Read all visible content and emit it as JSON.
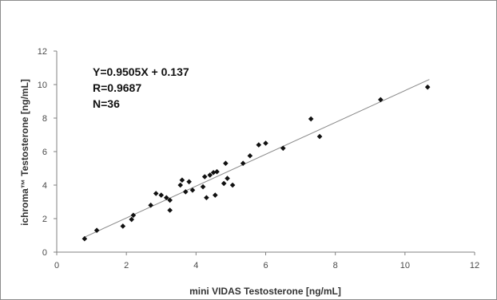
{
  "chart_data": {
    "type": "scatter",
    "xlabel": "mini VIDAS Testosterone [ng/mL]",
    "ylabel": "ichroma™ Testosterone [ng/mL]",
    "xlim": [
      0,
      12
    ],
    "ylim": [
      0,
      12
    ],
    "x_ticks": [
      0,
      2,
      4,
      6,
      8,
      10,
      12
    ],
    "y_ticks": [
      0,
      2,
      4,
      6,
      8,
      10,
      12
    ],
    "grid": false,
    "legend": "none",
    "annotations": [
      "Y=0.9505X + 0.137",
      "R=0.9687",
      "N=36"
    ],
    "trendline": {
      "slope": 0.9505,
      "intercept": 0.137,
      "x_range": [
        0.8,
        10.7
      ]
    },
    "points": [
      {
        "x": 0.8,
        "y": 0.8
      },
      {
        "x": 1.15,
        "y": 1.3
      },
      {
        "x": 1.9,
        "y": 1.55
      },
      {
        "x": 2.15,
        "y": 1.95
      },
      {
        "x": 2.2,
        "y": 2.2
      },
      {
        "x": 2.7,
        "y": 2.8
      },
      {
        "x": 2.85,
        "y": 3.5
      },
      {
        "x": 3.0,
        "y": 3.4
      },
      {
        "x": 3.15,
        "y": 3.25
      },
      {
        "x": 3.25,
        "y": 3.1
      },
      {
        "x": 3.25,
        "y": 2.5
      },
      {
        "x": 3.55,
        "y": 4.0
      },
      {
        "x": 3.6,
        "y": 4.3
      },
      {
        "x": 3.7,
        "y": 3.6
      },
      {
        "x": 3.8,
        "y": 4.2
      },
      {
        "x": 3.9,
        "y": 3.7
      },
      {
        "x": 4.2,
        "y": 3.9
      },
      {
        "x": 4.25,
        "y": 4.5
      },
      {
        "x": 4.3,
        "y": 3.25
      },
      {
        "x": 4.4,
        "y": 4.6
      },
      {
        "x": 4.5,
        "y": 4.75
      },
      {
        "x": 4.55,
        "y": 3.4
      },
      {
        "x": 4.6,
        "y": 4.8
      },
      {
        "x": 4.8,
        "y": 4.1
      },
      {
        "x": 4.85,
        "y": 5.3
      },
      {
        "x": 4.9,
        "y": 4.4
      },
      {
        "x": 5.05,
        "y": 4.0
      },
      {
        "x": 5.35,
        "y": 5.3
      },
      {
        "x": 5.55,
        "y": 5.75
      },
      {
        "x": 5.8,
        "y": 6.4
      },
      {
        "x": 6.0,
        "y": 6.5
      },
      {
        "x": 6.5,
        "y": 6.2
      },
      {
        "x": 7.3,
        "y": 7.95
      },
      {
        "x": 7.55,
        "y": 6.9
      },
      {
        "x": 9.3,
        "y": 9.1
      },
      {
        "x": 10.65,
        "y": 9.85
      }
    ]
  },
  "style": {
    "marker_color": "#111111",
    "trendline_color": "#8a8a8a",
    "axis_color": "#808080"
  }
}
